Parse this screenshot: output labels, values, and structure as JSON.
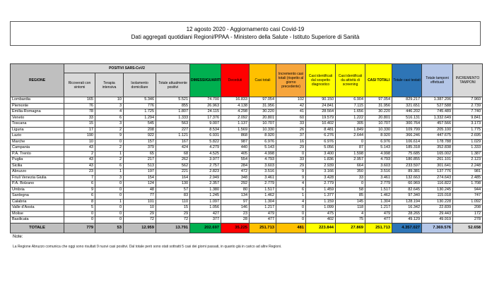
{
  "title": {
    "line1": "12 agosto 2020 - Aggiornamento casi Covid-19",
    "line2": "Dati aggregati quotidiani Regioni/PPAA - Ministero della Salute - Istituto Superiore di Sanità"
  },
  "colors": {
    "regione_header_gray": "#BFBFBF",
    "subheader_light_gray": "#D9D9D9",
    "dimessi_green": "#00B050",
    "deceduti_red": "#FF0000",
    "casi_totali_amber": "#FFC000",
    "incremento_orange": "#F6A53C",
    "identificati_yellow": "#FFFF00",
    "testati_blue": "#2E75B6",
    "tamponi_light_blue": "#B4C6E7"
  },
  "table": {
    "headers": {
      "regione": "REGIONE",
      "positivi_group": "POSITIVI SARS-CoV2",
      "ricoverati": "Ricoverati con sintomi",
      "terapia": "Terapia intensiva",
      "isolamento": "Isolamento domiciliare",
      "tot_positivi": "Totale attualmente positivi",
      "dimessi": "DIMESSI/GUARITI",
      "deceduti": "Deceduti",
      "casi_totali": "Casi totali",
      "incremento": "Incremento casi totali (rispetto al giorno precedente)",
      "sospetto": "Casi identificati dal sospetto diagnostico",
      "screening": "Casi identificati da attività di screening",
      "casi_totali_2": "CASI TOTALI",
      "testati": "Totale casi testati",
      "tamponi": "Totale tamponi effettuati",
      "incr_tamponi": "INCREMENTO TAMPONI"
    },
    "regions": [
      [
        "Lombardia",
        "165",
        "10",
        "5.346",
        "5.521",
        "74.700",
        "16.833",
        "97.054",
        "102",
        "90.150",
        "6.904",
        "97.054",
        "829.217",
        "1.387.206",
        "7.960"
      ],
      [
        "Piemonte",
        "76",
        "3",
        "776",
        "855",
        "26.963",
        "4.138",
        "31.956",
        "42",
        "24.841",
        "7.115",
        "31.956",
        "321.651",
        "527.588",
        "2.739"
      ],
      [
        "Emilia-Romagna",
        "78",
        "4",
        "1.725",
        "1.807",
        "24.115",
        "4.298",
        "30.220",
        "41",
        "28.564",
        "1.656",
        "30.220",
        "446.202",
        "745.489",
        "7.740"
      ],
      [
        "Veneto",
        "33",
        "6",
        "1.294",
        "1.333",
        "17.376",
        "2.092",
        "20.801",
        "60",
        "19.579",
        "1.222",
        "20.801",
        "516.131",
        "1.332.649",
        "9.841"
      ],
      [
        "Toscana",
        "15",
        "3",
        "545",
        "563",
        "9.007",
        "1.137",
        "10.707",
        "33",
        "10.402",
        "305",
        "10.707",
        "300.764",
        "457.566",
        "3.173"
      ],
      [
        "Liguria",
        "17",
        "2",
        "208",
        "227",
        "8.534",
        "1.569",
        "10.330",
        "26",
        "8.481",
        "1.849",
        "10.330",
        "109.799",
        "205.100",
        "1.775"
      ],
      [
        "Lazio",
        "190",
        "9",
        "922",
        "1.121",
        "6.931",
        "868",
        "8.920",
        "37",
        "6.276",
        "2.644",
        "8.920",
        "366.246",
        "447.675",
        "2.695"
      ],
      [
        "Marche",
        "10",
        "0",
        "157",
        "167",
        "5.822",
        "987",
        "6.976",
        "16",
        "6.976",
        "0",
        "6.976",
        "106.614",
        "178.788",
        "1.029"
      ],
      [
        "Campania",
        "43",
        "2",
        "379",
        "424",
        "4.279",
        "440",
        "5.143",
        "29",
        "5.056",
        "87",
        "5.143",
        "185.318",
        "352.838",
        "1.333"
      ],
      [
        "P.A. Trento",
        "2",
        "1",
        "65",
        "68",
        "4.525",
        "405",
        "4.998",
        "0",
        "3.400",
        "1.598",
        "4.998",
        "75.685",
        "165.002",
        "1.387"
      ],
      [
        "Puglia",
        "43",
        "2",
        "217",
        "262",
        "3.977",
        "554",
        "4.793",
        "33",
        "1.836",
        "2.957",
        "4.793",
        "180.855",
        "261.101",
        "2.123"
      ],
      [
        "Sicilia",
        "43",
        "6",
        "513",
        "562",
        "2.757",
        "284",
        "3.603",
        "29",
        "2.939",
        "664",
        "3.603",
        "233.597",
        "301.641",
        "2.248"
      ],
      [
        "Abruzzo",
        "23",
        "1",
        "197",
        "221",
        "2.823",
        "472",
        "3.516",
        "9",
        "3.166",
        "350",
        "3.516",
        "89.381",
        "137.776",
        "981"
      ],
      [
        "Friuli Venezia Giulia",
        "7",
        "3",
        "154",
        "164",
        "2.949",
        "348",
        "3.461",
        "9",
        "3.428",
        "33",
        "3.461",
        "132.663",
        "274.643",
        "2.485"
      ],
      [
        "P.A. Bolzano",
        "6",
        "0",
        "124",
        "130",
        "2.357",
        "292",
        "2.779",
        "4",
        "2.779",
        "0",
        "2.779",
        "60.969",
        "116.822",
        "1.708"
      ],
      [
        "Umbria",
        "9",
        "0",
        "48",
        "57",
        "1.380",
        "80",
        "1.517",
        "6",
        "1.459",
        "58",
        "1.517",
        "82.645",
        "130.245",
        "944"
      ],
      [
        "Sardegna",
        "6",
        "0",
        "77",
        "83",
        "1.245",
        "134",
        "1.462",
        "1",
        "1.377",
        "85",
        "1.462",
        "97.340",
        "115.018",
        "747"
      ],
      [
        "Calabria",
        "8",
        "1",
        "101",
        "110",
        "1.097",
        "97",
        "1.304",
        "4",
        "1.159",
        "145",
        "1.304",
        "128.194",
        "130.228",
        "1.092"
      ],
      [
        "Valle d'Aosta",
        "5",
        "0",
        "10",
        "15",
        "1.056",
        "146",
        "1.217",
        "0",
        "1.099",
        "118",
        "1.217",
        "16.342",
        "22.839",
        "208"
      ],
      [
        "Molise",
        "0",
        "0",
        "29",
        "29",
        "427",
        "23",
        "479",
        "0",
        "475",
        "4",
        "479",
        "28.265",
        "29.443",
        "172"
      ],
      [
        "Basilicata",
        "0",
        "0",
        "72",
        "72",
        "377",
        "28",
        "477",
        "0",
        "402",
        "75",
        "477",
        "49.129",
        "49.919",
        "278"
      ]
    ],
    "totals": [
      "TOTALE",
      "779",
      "53",
      "12.959",
      "13.791",
      "202.697",
      "35.225",
      "251.713",
      "481",
      "223.844",
      "27.869",
      "251.713",
      "4.357.027",
      "7.369.576",
      "52.658"
    ]
  },
  "note": {
    "label": "Note:",
    "text": "La Regione Abruzzo comunica che oggi sono risultati 9 nuovi casi positivi. Dal totale però sono stati sottratti 5 casi dei giorni passati, in quanto già in carico ad altre Regioni."
  }
}
